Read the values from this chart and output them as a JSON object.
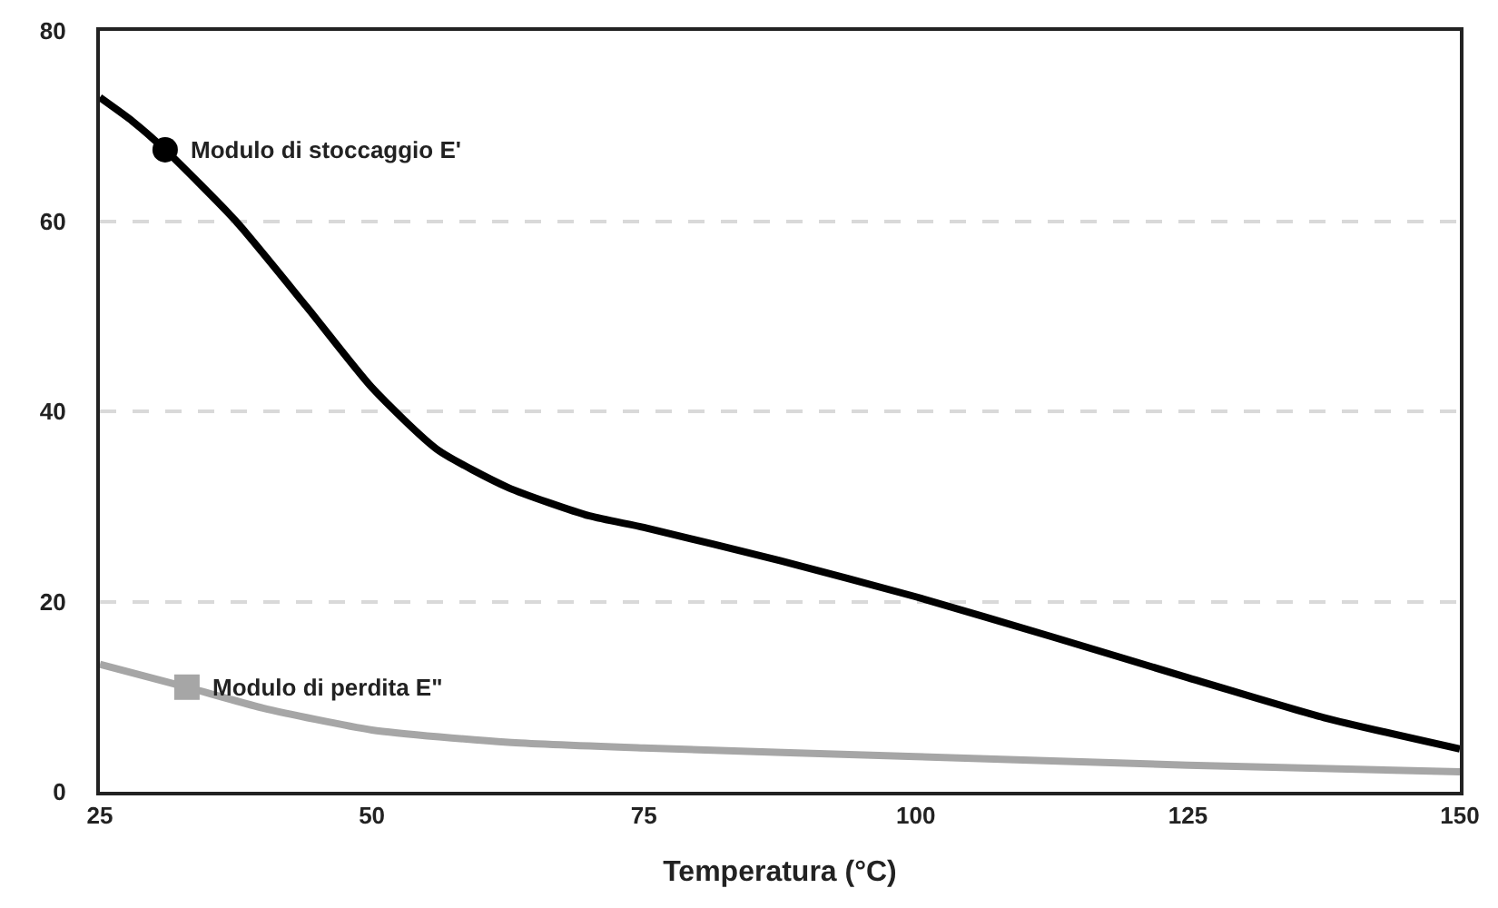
{
  "chart_data": {
    "type": "line",
    "xlabel": "Temperatura (°C)",
    "xlim": [
      25,
      150
    ],
    "xticks": [
      25,
      50,
      75,
      100,
      125,
      150
    ],
    "ylim": [
      0,
      80
    ],
    "yticks": [
      0,
      20,
      40,
      60,
      80
    ],
    "grid": "y",
    "line_style": "solid",
    "series": [
      {
        "color": "#000000",
        "x": [
          25,
          28,
          31,
          37.5,
          44,
          50,
          56,
          62.5,
          70,
          75,
          87.5,
          100,
          112.5,
          125,
          137.5,
          150
        ],
        "values": [
          73,
          70.5,
          67.5,
          60,
          51,
          42.5,
          36,
          32,
          29,
          27.8,
          24.3,
          20.5,
          16.3,
          12,
          7.8,
          4.5
        ]
      },
      {
        "color": "#a6a6a6",
        "x": [
          25,
          33,
          40,
          50,
          62.5,
          75,
          100,
          125,
          150
        ],
        "values": [
          13.4,
          11,
          8.8,
          6.5,
          5.2,
          4.6,
          3.7,
          2.8,
          2.1
        ]
      },
      {
        "type": "scatter",
        "color": "#000000",
        "marker": "circle",
        "x": [
          31
        ],
        "values": [
          67.5
        ]
      },
      {
        "type": "scatter",
        "color": "#a6a6a6",
        "marker": "square",
        "x": [
          33
        ],
        "values": [
          11
        ]
      }
    ],
    "annotations": [
      {
        "text": "Modulo di stoccaggio E'",
        "x": 31,
        "y": 67.5
      },
      {
        "text": "Modulo di perdita E\"",
        "x": 33,
        "y": 11
      }
    ]
  }
}
